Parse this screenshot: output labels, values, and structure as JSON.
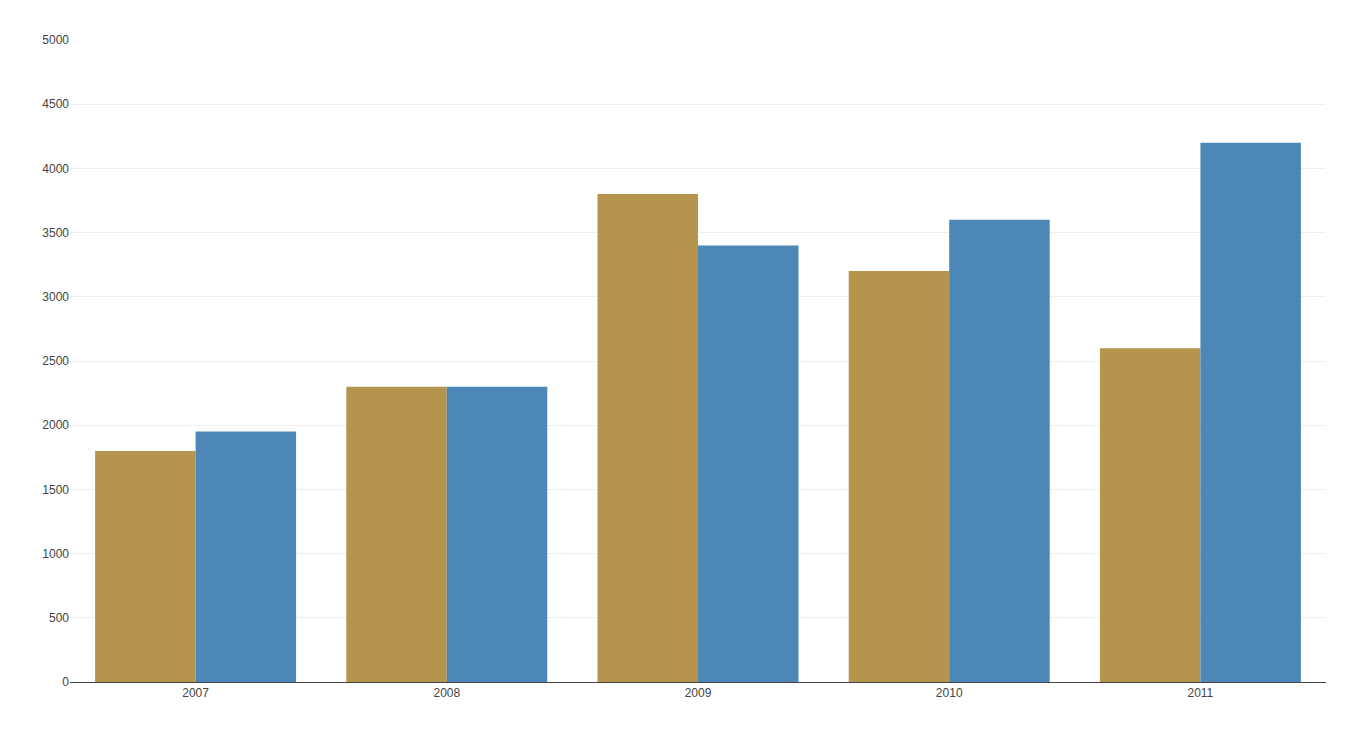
{
  "chart_data": {
    "type": "bar",
    "categories": [
      "2007",
      "2008",
      "2009",
      "2010",
      "2011"
    ],
    "series": [
      {
        "color": "#b5954e",
        "values": [
          1800,
          2300,
          3800,
          3200,
          2600
        ]
      },
      {
        "color": "#4d87b8",
        "values": [
          1950,
          2300,
          3400,
          3600,
          4200
        ]
      }
    ],
    "ylim": [
      0,
      5000
    ],
    "yticks": [
      0,
      500,
      1000,
      1500,
      2000,
      2500,
      3000,
      3500,
      4000,
      4500,
      5000
    ],
    "grid": true
  }
}
